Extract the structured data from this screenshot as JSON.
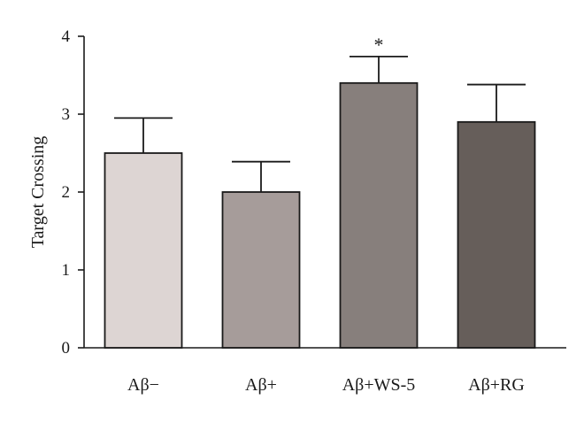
{
  "chart_data": {
    "type": "bar",
    "categories": [
      "Aβ−",
      "Aβ+",
      "Aβ+WS-5",
      "Aβ+RG"
    ],
    "values": [
      2.5,
      2.0,
      3.4,
      2.9
    ],
    "error_upper": [
      2.95,
      2.39,
      3.74,
      3.38
    ],
    "colors": [
      "#ddd5d3",
      "#a69c9a",
      "#877f7c",
      "#665e5a"
    ],
    "annotations": [
      "",
      "",
      "*",
      ""
    ],
    "title": "",
    "xlabel": "",
    "ylabel": "Target Crossing",
    "ylim": [
      0,
      4
    ],
    "yticks": [
      0,
      1,
      2,
      3,
      4
    ],
    "grid": false,
    "legend": "none"
  }
}
